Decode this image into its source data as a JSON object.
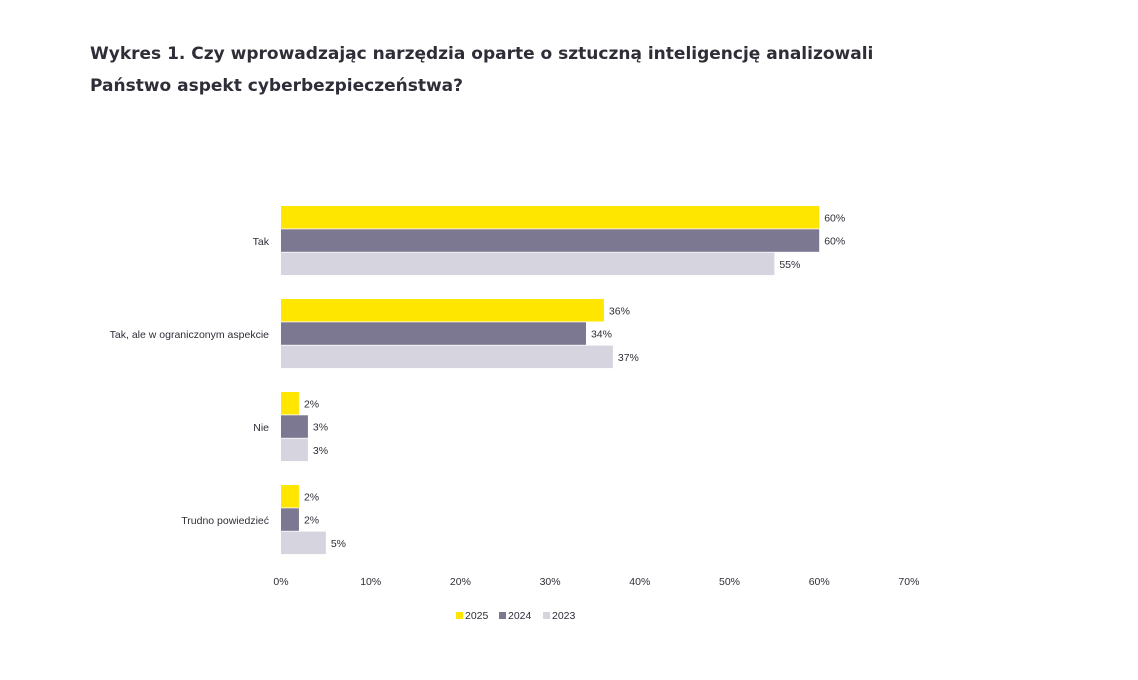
{
  "title": {
    "line1": "Wykres 1. Czy wprowadzając narzędzia oparte o sztuczną inteligencję analizowali",
    "line2": "Państwo aspekt cyberbezpieczeństwa?"
  },
  "colors": {
    "series_2025": "#ffe600",
    "series_2024": "#7c7891",
    "series_2023": "#d6d5df"
  },
  "chart_data": {
    "type": "bar",
    "orientation": "horizontal",
    "categories": [
      "Tak",
      "Tak, ale w ograniczonym aspekcie",
      "Nie",
      "Trudno powiedzieć"
    ],
    "series": [
      {
        "name": "2025",
        "values": [
          60,
          36,
          2,
          2
        ],
        "labels": [
          "60%",
          "36%",
          "2%",
          "2%"
        ]
      },
      {
        "name": "2024",
        "values": [
          60,
          34,
          3,
          2
        ],
        "labels": [
          "60%",
          "34%",
          "3%",
          "2%"
        ]
      },
      {
        "name": "2023",
        "values": [
          55,
          37,
          3,
          5
        ],
        "labels": [
          "55%",
          "37%",
          "3%",
          "5%"
        ]
      }
    ],
    "xlim": [
      0,
      70
    ],
    "xticks": [
      "0%",
      "10%",
      "20%",
      "30%",
      "40%",
      "50%",
      "60%",
      "70%"
    ],
    "xlabel": "",
    "ylabel": "",
    "grid": false,
    "legend": "bottom-center"
  }
}
